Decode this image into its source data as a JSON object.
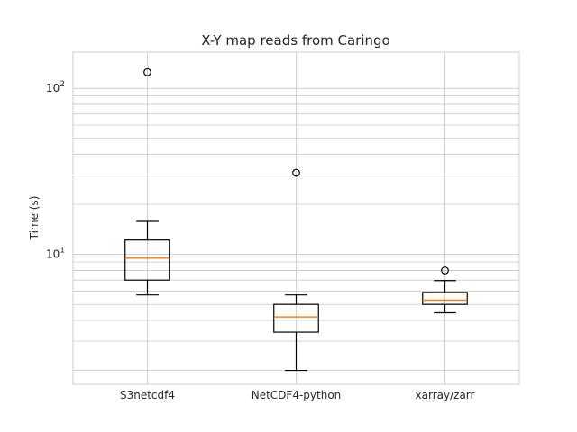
{
  "chart_data": {
    "type": "box",
    "title": "X-Y map reads from Caringo",
    "ylabel": "Time (s)",
    "xlabel": "",
    "yscale": "log",
    "ylim": [
      1.65,
      165
    ],
    "ytick_labels": [
      {
        "value": 10,
        "base": "10",
        "exp": "1"
      },
      {
        "value": 100,
        "base": "10",
        "exp": "2"
      }
    ],
    "grid": true,
    "categories": [
      "S3netcdf4",
      "NetCDF4-python",
      "xarray/zarr"
    ],
    "series": [
      {
        "q1": 7.0,
        "median": 9.5,
        "q3": 12.2,
        "whisker_low": 5.7,
        "whisker_high": 15.8,
        "outliers": [
          125
        ]
      },
      {
        "q1": 3.4,
        "median": 4.2,
        "q3": 5.0,
        "whisker_low": 2.0,
        "whisker_high": 5.7,
        "outliers": [
          31
        ]
      },
      {
        "q1": 5.0,
        "median": 5.3,
        "q3": 5.9,
        "whisker_low": 4.45,
        "whisker_high": 6.95,
        "outliers": [
          8.0
        ]
      }
    ],
    "colors": {
      "box": "#000000",
      "median": "#ff7f0e",
      "grid": "#cccccc"
    }
  }
}
